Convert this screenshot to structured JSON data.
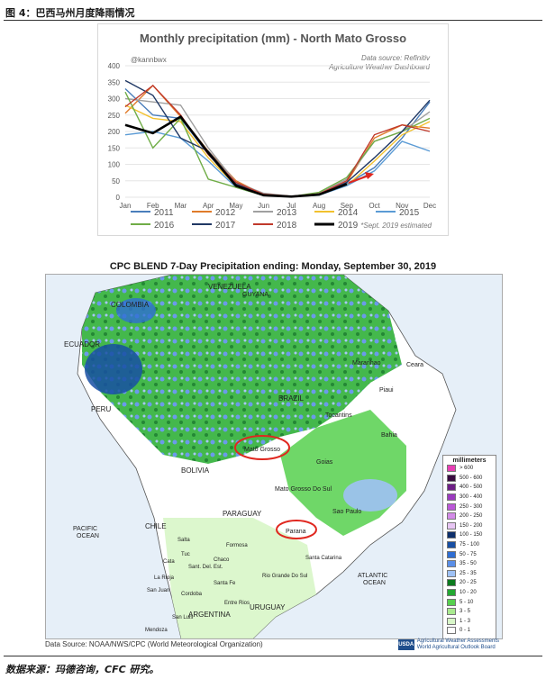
{
  "figure": {
    "label": "图 4：巴西马州月度降雨情况",
    "source_note": "数据来源：玛德咨询，CFC 研究。"
  },
  "chart_data": {
    "type": "line",
    "title": "Monthly precipitation (mm) - North Mato Grosso",
    "handle": "@kannbwx",
    "data_source": "Data source: Refinitiv",
    "data_source_2": "Agriculture Weather Dashboard",
    "estimate_note": "*Sept. 2019 estimated",
    "categories": [
      "Jan",
      "Feb",
      "Mar",
      "Apr",
      "May",
      "Jun",
      "Jul",
      "Aug",
      "Sep",
      "Oct",
      "Nov",
      "Dec"
    ],
    "ylim": [
      0,
      400
    ],
    "yticks": [
      "0",
      "50",
      "100",
      "150",
      "200",
      "250",
      "300",
      "350",
      "400"
    ],
    "series": [
      {
        "name": "2011",
        "color": "#4a7ebb",
        "values": [
          330,
          250,
          240,
          130,
          40,
          10,
          2,
          10,
          40,
          90,
          180,
          290
        ]
      },
      {
        "name": "2012",
        "color": "#e07b2a",
        "values": [
          255,
          340,
          245,
          140,
          50,
          8,
          3,
          8,
          45,
          180,
          220,
          210
        ]
      },
      {
        "name": "2013",
        "color": "#a0a0a0",
        "values": [
          300,
          290,
          280,
          150,
          45,
          12,
          3,
          12,
          55,
          170,
          200,
          260
        ]
      },
      {
        "name": "2014",
        "color": "#f2c12e",
        "values": [
          280,
          240,
          230,
          120,
          35,
          8,
          3,
          8,
          35,
          110,
          190,
          230
        ]
      },
      {
        "name": "2015",
        "color": "#5b9bd5",
        "values": [
          190,
          200,
          180,
          110,
          30,
          5,
          2,
          6,
          35,
          80,
          170,
          140
        ]
      },
      {
        "name": "2016",
        "color": "#70ad47",
        "values": [
          320,
          150,
          240,
          55,
          30,
          5,
          2,
          15,
          60,
          170,
          200,
          240
        ]
      },
      {
        "name": "2017",
        "color": "#203864",
        "values": [
          355,
          310,
          180,
          140,
          40,
          7,
          2,
          10,
          45,
          120,
          200,
          295
        ]
      },
      {
        "name": "2018",
        "color": "#c0392b",
        "values": [
          275,
          340,
          250,
          130,
          45,
          9,
          3,
          10,
          50,
          190,
          220,
          200
        ]
      },
      {
        "name": "2019",
        "color": "#000000",
        "values": [
          220,
          195,
          245,
          135,
          35,
          6,
          2,
          8,
          40,
          null,
          null,
          null
        ]
      }
    ]
  },
  "map": {
    "title": "CPC BLEND 7-Day Precipitation ending: Monday, September 30, 2019",
    "data_source": "Data Source: NOAA/NWS/CPC (World Meteorological Organization)",
    "agency_1": "Agricultural Weather Assessments",
    "agency_2": "World Agricultural Outlook Board",
    "logo_text": "USDA",
    "legend_title": "millimeters",
    "legend": [
      {
        "label": "> 600",
        "color": "#e83fb5"
      },
      {
        "label": "500 - 600",
        "color": "#3a0b40"
      },
      {
        "label": "400 - 500",
        "color": "#6e1f86"
      },
      {
        "label": "300 - 400",
        "color": "#9b3bbf"
      },
      {
        "label": "250 - 300",
        "color": "#bb58d8"
      },
      {
        "label": "200 - 250",
        "color": "#d38be8"
      },
      {
        "label": "150 - 200",
        "color": "#e8c6f4"
      },
      {
        "label": "100 - 150",
        "color": "#0e2f6b"
      },
      {
        "label": "75 - 100",
        "color": "#184fa3"
      },
      {
        "label": "50 - 75",
        "color": "#2f6ed3"
      },
      {
        "label": "35 - 50",
        "color": "#5a8fe8"
      },
      {
        "label": "25 - 35",
        "color": "#9ec1f5"
      },
      {
        "label": "20 - 25",
        "color": "#0b7a1e"
      },
      {
        "label": "10 - 20",
        "color": "#23a832"
      },
      {
        "label": "5 - 10",
        "color": "#56d04e"
      },
      {
        "label": "3 - 5",
        "color": "#a9ea8f"
      },
      {
        "label": "1 - 3",
        "color": "#d8f6c8"
      },
      {
        "label": "0 - 1",
        "color": "#ffffff"
      }
    ],
    "labels": {
      "venezuela": "VENEZUELA",
      "guyana": "GUYANA",
      "colombia": "COLOMBIA",
      "ecuador": "ECUADOR",
      "peru": "PERU",
      "bolivia": "BOLIVIA",
      "chile": "CHILE",
      "paraguay": "PARAGUAY",
      "argentina": "ARGENTINA",
      "uruguay": "URUGUAY",
      "brazil": "BRAZIL",
      "pacific_1": "PACIFIC",
      "pacific_2": "OCEAN",
      "atlantic_1": "ATLANTIC",
      "atlantic_2": "OCEAN",
      "mato_grosso": "Mato Grosso",
      "parana": "Parana",
      "goias": "Goias",
      "bahia": "Bahia",
      "ceara": "Ceara",
      "maranhao": "Maranhao",
      "tocantins": "Tocantins",
      "piaui": "Piaui",
      "ms": "Mato Grosso Do Sul",
      "sao_paulo": "Sao Paulo",
      "santa_catarina": "Santa Catarina",
      "rgs": "Rio Grande Do Sul",
      "salta": "Salta",
      "formosa": "Formosa",
      "chaco": "Chaco",
      "cordoba": "Cordoba",
      "santa_fe": "Santa Fe",
      "entre_rios": "Entre Rios",
      "san_luis": "San Luis",
      "mendoza": "Mendoza",
      "san_juan": "San Juan",
      "la_rioja": "La Rioja",
      "catamarca": "Cata",
      "tucuman": "Tuc",
      "santiago": "Sant. Del. Est."
    }
  }
}
